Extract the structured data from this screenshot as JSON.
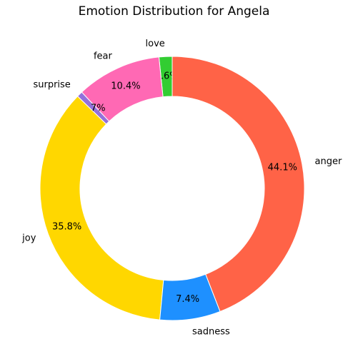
{
  "chart_data": {
    "type": "pie",
    "variant": "donut",
    "title": "Emotion Distribution for Angela",
    "start_angle_deg": 90,
    "direction": "counterclockwise",
    "slices": [
      {
        "label": "love",
        "pct_label": "1.6%",
        "value": 1.6,
        "color": "#32CD32"
      },
      {
        "label": "fear",
        "pct_label": "10.4%",
        "value": 10.4,
        "color": "#FF69B4"
      },
      {
        "label": "surprise",
        "pct_label": "0.7%",
        "value": 0.7,
        "color": "#9370DB"
      },
      {
        "label": "joy",
        "pct_label": "35.8%",
        "value": 35.8,
        "color": "#FFD700"
      },
      {
        "label": "sadness",
        "pct_label": "7.4%",
        "value": 7.4,
        "color": "#1E90FF"
      },
      {
        "label": "anger",
        "pct_label": "44.1%",
        "value": 44.1,
        "color": "#FF6347"
      }
    ]
  }
}
